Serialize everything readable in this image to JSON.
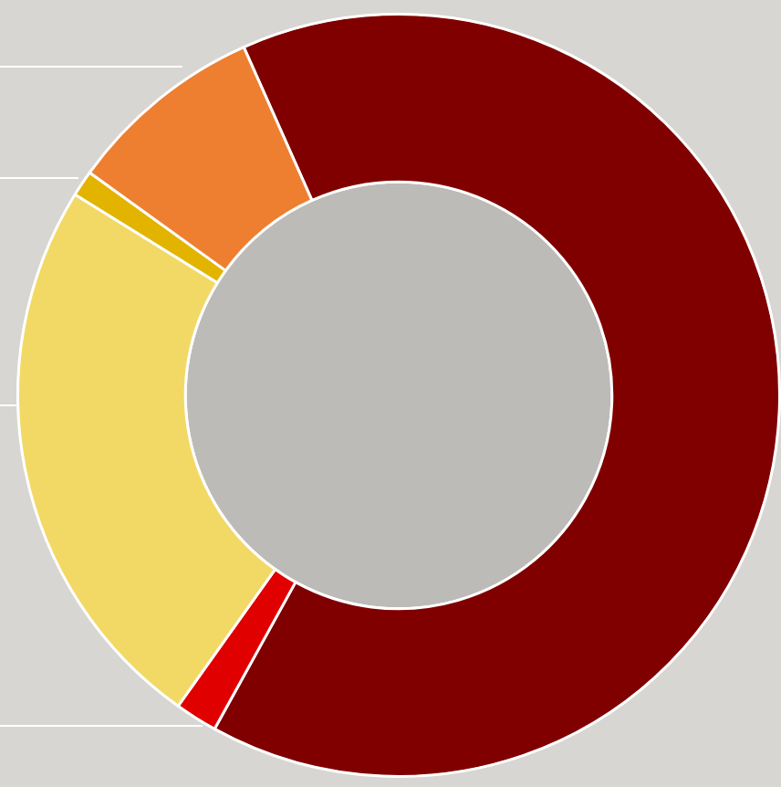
{
  "chart_data": {
    "type": "doughnut",
    "categories": [
      null,
      null,
      null,
      null,
      null
    ],
    "values": [
      64.7,
      1.8,
      24.0,
      1.1,
      8.4
    ],
    "colors": [
      "#800000",
      "#e00000",
      "#f2d966",
      "#e2b400",
      "#ee7f30"
    ]
  }
}
